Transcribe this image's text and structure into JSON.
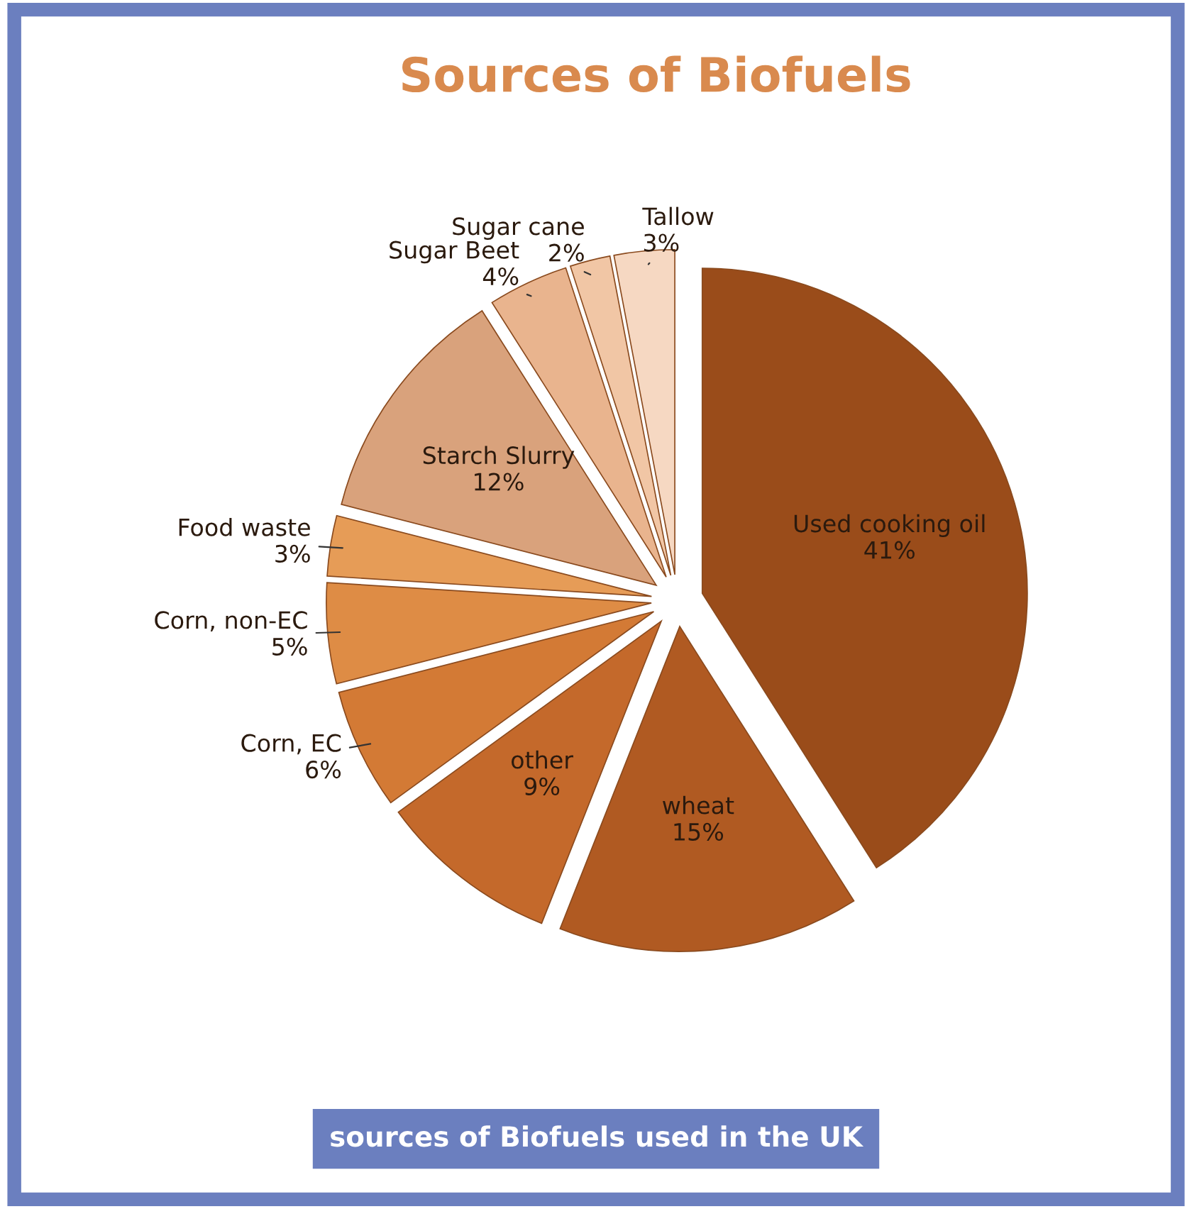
{
  "chart_data": {
    "type": "pie",
    "title": "Sources of Biofuels",
    "categories": [
      "Used cooking oil",
      "wheat",
      "other",
      "Corn, EC",
      "Corn, non-EC",
      "Food waste",
      "Starch Slurry",
      "Sugar Beet",
      "Sugar cane",
      "Tallow"
    ],
    "values": [
      41,
      15,
      9,
      6,
      5,
      3,
      12,
      4,
      2,
      3
    ],
    "value_labels": [
      "41%",
      "15%",
      "9%",
      "6%",
      "5%",
      "3%",
      "12%",
      "4%",
      "2%",
      "3%"
    ],
    "colors": [
      "#9a4c1a",
      "#b05a22",
      "#c4692b",
      "#d37a35",
      "#de8c45",
      "#e69c57",
      "#d9a27c",
      "#e9b48e",
      "#f1c6a5",
      "#f6d8c2"
    ],
    "legend": false,
    "annotations": [
      "sources of Biofuels used in the UK"
    ]
  }
}
